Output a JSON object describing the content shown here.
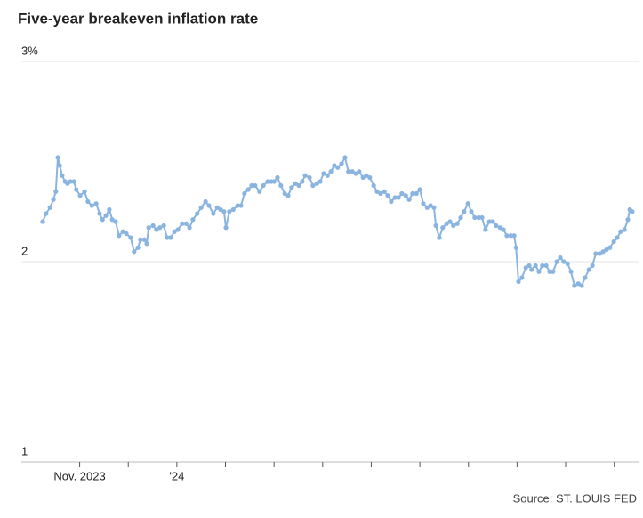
{
  "chart_data": {
    "type": "line",
    "title": "Five-year breakeven inflation rate",
    "source": "Source: ST. LOUIS FED",
    "color": "#8ab4e0",
    "grid": true,
    "markers": true,
    "ylim": [
      1,
      3
    ],
    "yticks": [
      1,
      2,
      {
        "value": 3,
        "label": "3%"
      }
    ],
    "xlim": [
      -0.2,
      12.5
    ],
    "xticks": [
      {
        "value": 1,
        "label": "Nov. 2023"
      },
      {
        "value": 2,
        "label": null
      },
      {
        "value": 3,
        "label": "'24"
      },
      {
        "value": 4,
        "label": null
      },
      {
        "value": 5,
        "label": null
      },
      {
        "value": 6,
        "label": null
      },
      {
        "value": 7,
        "label": null
      },
      {
        "value": 8,
        "label": null
      },
      {
        "value": 9,
        "label": null
      },
      {
        "value": 10,
        "label": null
      },
      {
        "value": 11,
        "label": null
      },
      {
        "value": 12,
        "label": null
      }
    ],
    "x": [
      0.24,
      0.31,
      0.39,
      0.46,
      0.51,
      0.55,
      0.59,
      0.64,
      0.7,
      0.75,
      0.81,
      0.88,
      0.93,
      1.01,
      1.1,
      1.17,
      1.25,
      1.34,
      1.41,
      1.47,
      1.54,
      1.61,
      1.67,
      1.74,
      1.81,
      1.89,
      1.96,
      2.05,
      2.12,
      2.2,
      2.25,
      2.33,
      2.38,
      2.42,
      2.51,
      2.58,
      2.65,
      2.73,
      2.8,
      2.87,
      2.95,
      3.02,
      3.11,
      3.19,
      3.26,
      3.33,
      3.42,
      3.5,
      3.59,
      3.66,
      3.75,
      3.83,
      3.9,
      3.97,
      4.01,
      4.08,
      4.16,
      4.25,
      4.32,
      4.39,
      4.47,
      4.54,
      4.61,
      4.7,
      4.78,
      4.87,
      4.94,
      5.0,
      5.07,
      5.14,
      5.22,
      5.29,
      5.36,
      5.44,
      5.51,
      5.58,
      5.64,
      5.73,
      5.8,
      5.88,
      5.95,
      6.02,
      6.1,
      6.17,
      6.24,
      6.31,
      6.39,
      6.46,
      6.53,
      6.61,
      6.68,
      6.75,
      6.83,
      6.9,
      6.97,
      7.05,
      7.12,
      7.19,
      7.27,
      7.34,
      7.41,
      7.49,
      7.56,
      7.63,
      7.71,
      7.78,
      7.85,
      7.93,
      8.0,
      8.07,
      8.15,
      8.22,
      8.29,
      8.33,
      8.4,
      8.47,
      8.55,
      8.62,
      8.69,
      8.77,
      8.84,
      8.91,
      8.99,
      9.06,
      9.13,
      9.21,
      9.28,
      9.35,
      9.43,
      9.5,
      9.57,
      9.65,
      9.72,
      9.79,
      9.87,
      9.94,
      9.98,
      10.03,
      10.1,
      10.18,
      10.25,
      10.3,
      10.38,
      10.45,
      10.52,
      10.6,
      10.67,
      10.74,
      10.82,
      10.89,
      10.96,
      11.04,
      11.11,
      11.18,
      11.26,
      11.33,
      11.4,
      11.48,
      11.55,
      11.62,
      11.7,
      11.77,
      11.84,
      11.91,
      11.99,
      12.06,
      12.13,
      12.21,
      12.28,
      12.32,
      12.37
    ],
    "values": [
      2.2,
      2.24,
      2.27,
      2.31,
      2.35,
      2.52,
      2.48,
      2.43,
      2.4,
      2.39,
      2.4,
      2.4,
      2.36,
      2.33,
      2.35,
      2.3,
      2.28,
      2.29,
      2.24,
      2.21,
      2.23,
      2.26,
      2.21,
      2.2,
      2.13,
      2.15,
      2.14,
      2.12,
      2.05,
      2.07,
      2.11,
      2.11,
      2.09,
      2.17,
      2.18,
      2.16,
      2.17,
      2.18,
      2.12,
      2.12,
      2.15,
      2.16,
      2.19,
      2.19,
      2.17,
      2.21,
      2.24,
      2.27,
      2.3,
      2.28,
      2.24,
      2.27,
      2.26,
      2.25,
      2.17,
      2.25,
      2.26,
      2.28,
      2.28,
      2.34,
      2.36,
      2.38,
      2.38,
      2.35,
      2.38,
      2.4,
      2.4,
      2.4,
      2.42,
      2.38,
      2.34,
      2.33,
      2.37,
      2.39,
      2.38,
      2.4,
      2.43,
      2.42,
      2.38,
      2.39,
      2.4,
      2.44,
      2.43,
      2.45,
      2.48,
      2.47,
      2.49,
      2.52,
      2.45,
      2.45,
      2.44,
      2.45,
      2.42,
      2.43,
      2.42,
      2.38,
      2.35,
      2.34,
      2.35,
      2.33,
      2.3,
      2.32,
      2.32,
      2.34,
      2.33,
      2.31,
      2.34,
      2.34,
      2.36,
      2.29,
      2.27,
      2.28,
      2.27,
      2.18,
      2.12,
      2.17,
      2.19,
      2.2,
      2.18,
      2.19,
      2.22,
      2.25,
      2.29,
      2.25,
      2.22,
      2.22,
      2.22,
      2.16,
      2.2,
      2.2,
      2.18,
      2.17,
      2.16,
      2.13,
      2.13,
      2.13,
      2.07,
      1.9,
      1.92,
      1.97,
      1.98,
      1.96,
      1.98,
      1.95,
      1.98,
      1.98,
      1.95,
      1.95,
      2.0,
      2.02,
      2.0,
      1.99,
      1.95,
      1.88,
      1.89,
      1.88,
      1.92,
      1.96,
      1.98,
      2.04,
      2.04,
      2.05,
      2.06,
      2.07,
      2.1,
      2.12,
      2.15,
      2.16,
      2.21,
      2.26,
      2.25
    ]
  }
}
